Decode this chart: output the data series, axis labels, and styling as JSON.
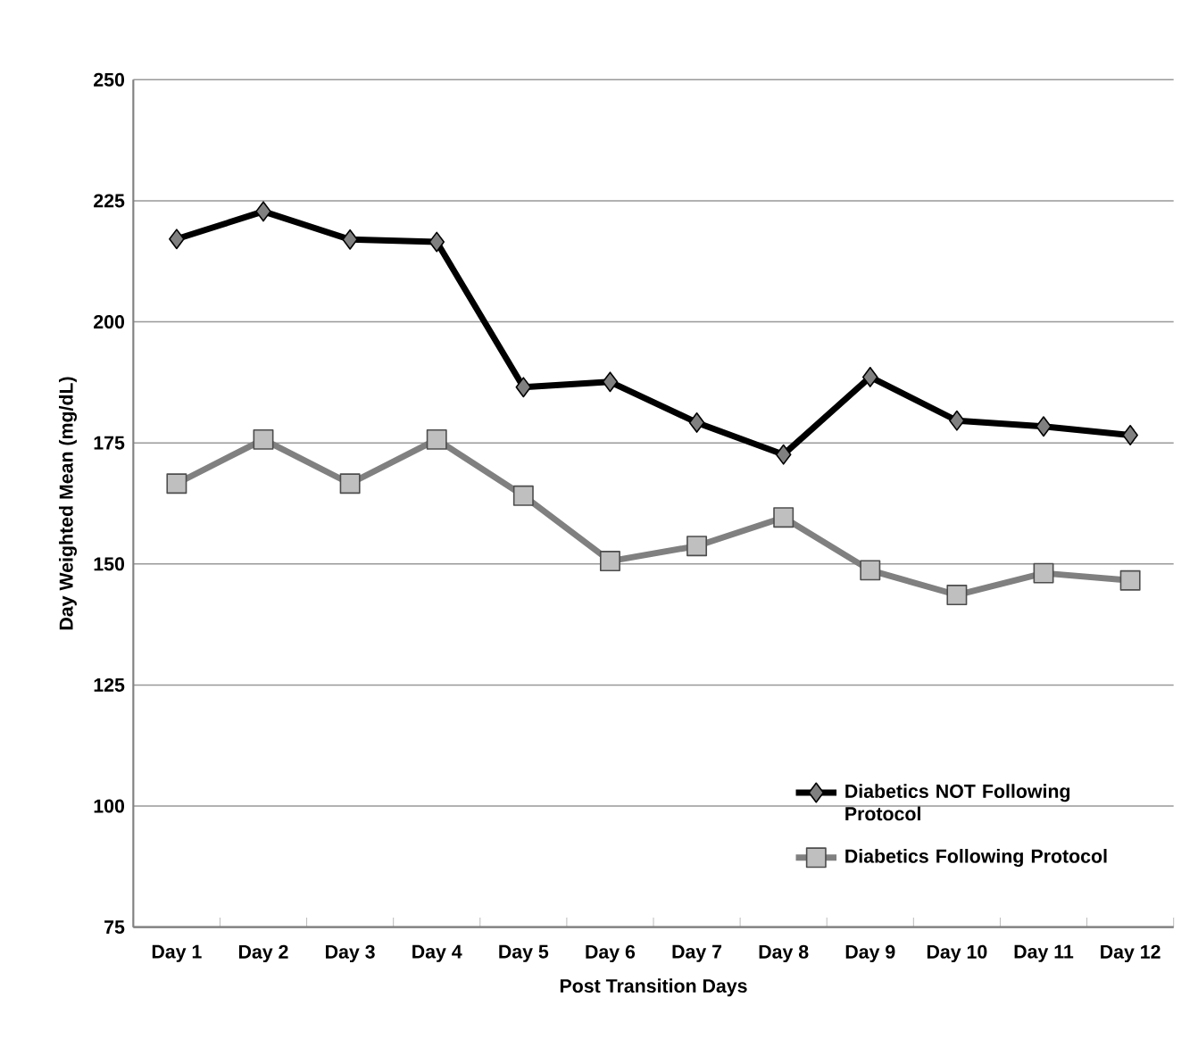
{
  "chart_data": {
    "type": "line",
    "xlabel": "Post Transition Days",
    "ylabel": "Day Weighted Mean (mg/dL)",
    "categories": [
      "Day 1",
      "Day 2",
      "Day 3",
      "Day 4",
      "Day 5",
      "Day 6",
      "Day 7",
      "Day 8",
      "Day 9",
      "Day 10",
      "Day 11",
      "Day 12"
    ],
    "series": [
      {
        "name": "Diabetics NOT Following Protocol",
        "color": "#000000",
        "marker": "diamond",
        "values": [
          217.1,
          222.8,
          217,
          216.5,
          186.5,
          187.6,
          179.2,
          172.6,
          188.6,
          179.6,
          178.4,
          176.6
        ]
      },
      {
        "name": "Diabetics Following Protocol",
        "color": "#808080",
        "marker": "square",
        "values": [
          166.6,
          175.7,
          166.6,
          175.7,
          164.1,
          150.6,
          153.7,
          159.6,
          148.7,
          143.6,
          148.1,
          146.6
        ]
      }
    ],
    "ylim": [
      75,
      250
    ],
    "yticks": [
      75,
      100,
      125,
      150,
      175,
      200,
      225,
      250
    ],
    "grid": "y",
    "legend": "bottom right",
    "line_style": "solid"
  }
}
